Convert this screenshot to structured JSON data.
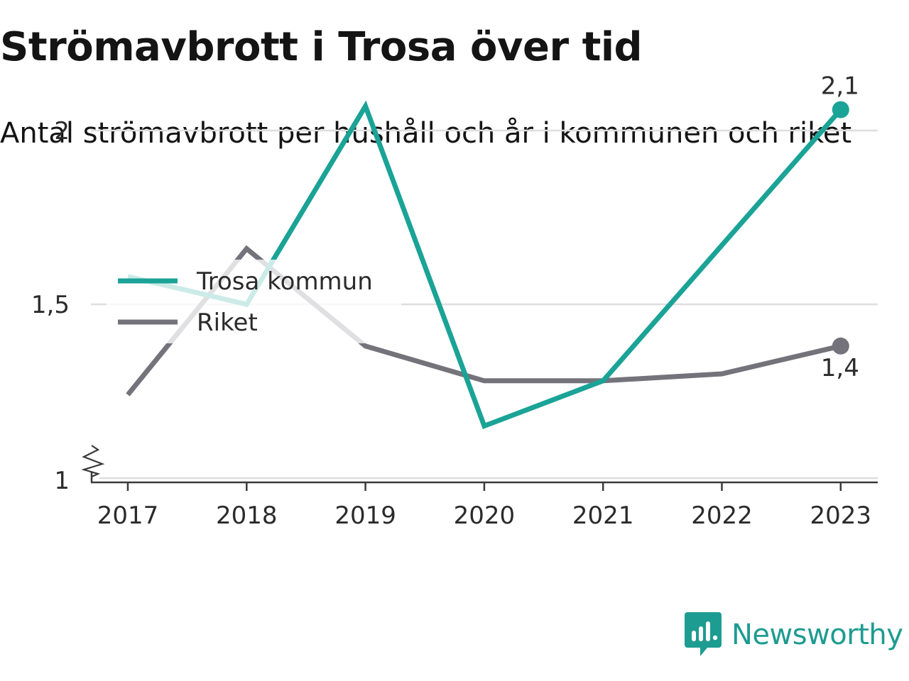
{
  "title": "Strömavbrott i Trosa över tid",
  "subtitle": "Antal strömavbrott per hushåll och år i kommunen och riket",
  "brand": {
    "name": "Newsworthy",
    "logo_icon": "newsworthy-logo-icon"
  },
  "colors": {
    "trosa": "#1aa396",
    "riket": "#74737b",
    "grid": "#dedede",
    "axis": "#3a3a3a",
    "brand": "#1d9c91"
  },
  "chart_data": {
    "type": "line",
    "title": "Strömavbrott i Trosa över tid",
    "subtitle": "Antal strömavbrott per hushåll och år i kommunen och riket",
    "categories": [
      "2017",
      "2018",
      "2019",
      "2020",
      "2021",
      "2022",
      "2023"
    ],
    "y_ticks": [
      1,
      1.5,
      2
    ],
    "y_tick_labels": [
      "1",
      "1,5",
      "2"
    ],
    "ylim": [
      1,
      2.2
    ],
    "y_axis_break": true,
    "grid": true,
    "legend_position": "top-left",
    "series": [
      {
        "name": "Trosa kommun",
        "values": [
          1.58,
          1.5,
          2.07,
          1.15,
          1.28,
          1.67,
          2.06
        ],
        "end_label": "2,1"
      },
      {
        "name": "Riket",
        "values": [
          1.24,
          1.66,
          1.38,
          1.28,
          1.28,
          1.3,
          1.38
        ],
        "end_label": "1,4"
      }
    ]
  }
}
